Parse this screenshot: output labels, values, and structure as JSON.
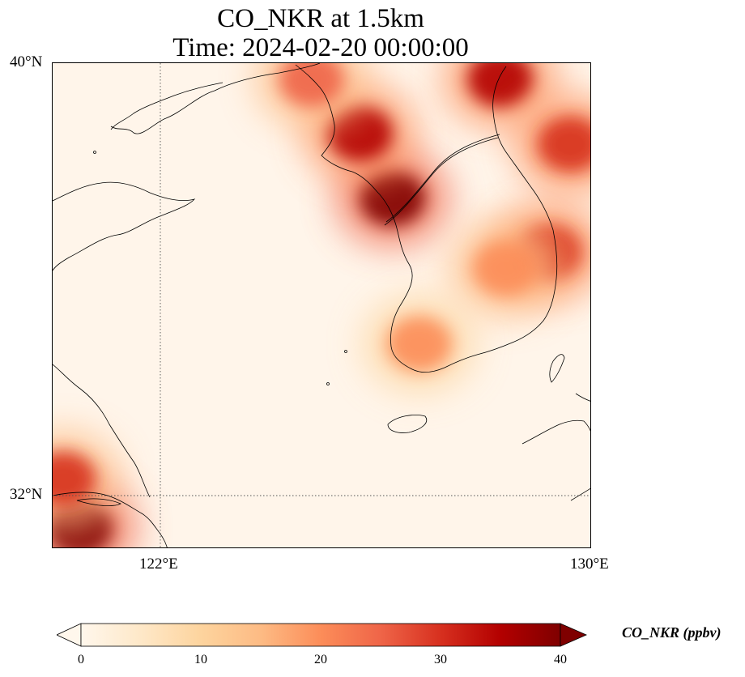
{
  "title": {
    "line1": "CO_NKR at 1.5km",
    "line2": "Time: 2024-02-20 00:00:00"
  },
  "lat_ticks": [
    "40°N",
    "32°N"
  ],
  "lon_ticks": [
    "122°E",
    "130°E"
  ],
  "colorbar": {
    "label": "CO_NKR (ppbv)",
    "ticks": [
      "0",
      "10",
      "20",
      "30",
      "40"
    ],
    "min": 0,
    "max": 40,
    "colormap": "OrRd",
    "colors": [
      "#fff7ec",
      "#fee8c8",
      "#fdd49e",
      "#fdbb84",
      "#fc8d59",
      "#ef6548",
      "#d7301f",
      "#b30000",
      "#7f0000"
    ],
    "extend": "both"
  },
  "map": {
    "lon_range": [
      120,
      130
    ],
    "lat_range": [
      31,
      40
    ],
    "gridlines": {
      "lon": [
        122
      ],
      "lat": [
        32
      ],
      "style": "dotted"
    },
    "field_units": "ppbv",
    "hotspots": [
      {
        "lon": 126.3,
        "lat": 37.5,
        "value": 42
      },
      {
        "lon": 125.7,
        "lat": 38.7,
        "value": 36
      },
      {
        "lon": 124.8,
        "lat": 39.7,
        "value": 26
      },
      {
        "lon": 128.3,
        "lat": 39.7,
        "value": 34
      },
      {
        "lon": 129.6,
        "lat": 38.5,
        "value": 30
      },
      {
        "lon": 129.2,
        "lat": 36.5,
        "value": 30
      },
      {
        "lon": 128.4,
        "lat": 36.2,
        "value": 22
      },
      {
        "lon": 126.8,
        "lat": 34.8,
        "value": 20
      },
      {
        "lon": 120.5,
        "lat": 31.4,
        "value": 44
      },
      {
        "lon": 120.2,
        "lat": 32.3,
        "value": 28
      }
    ]
  }
}
